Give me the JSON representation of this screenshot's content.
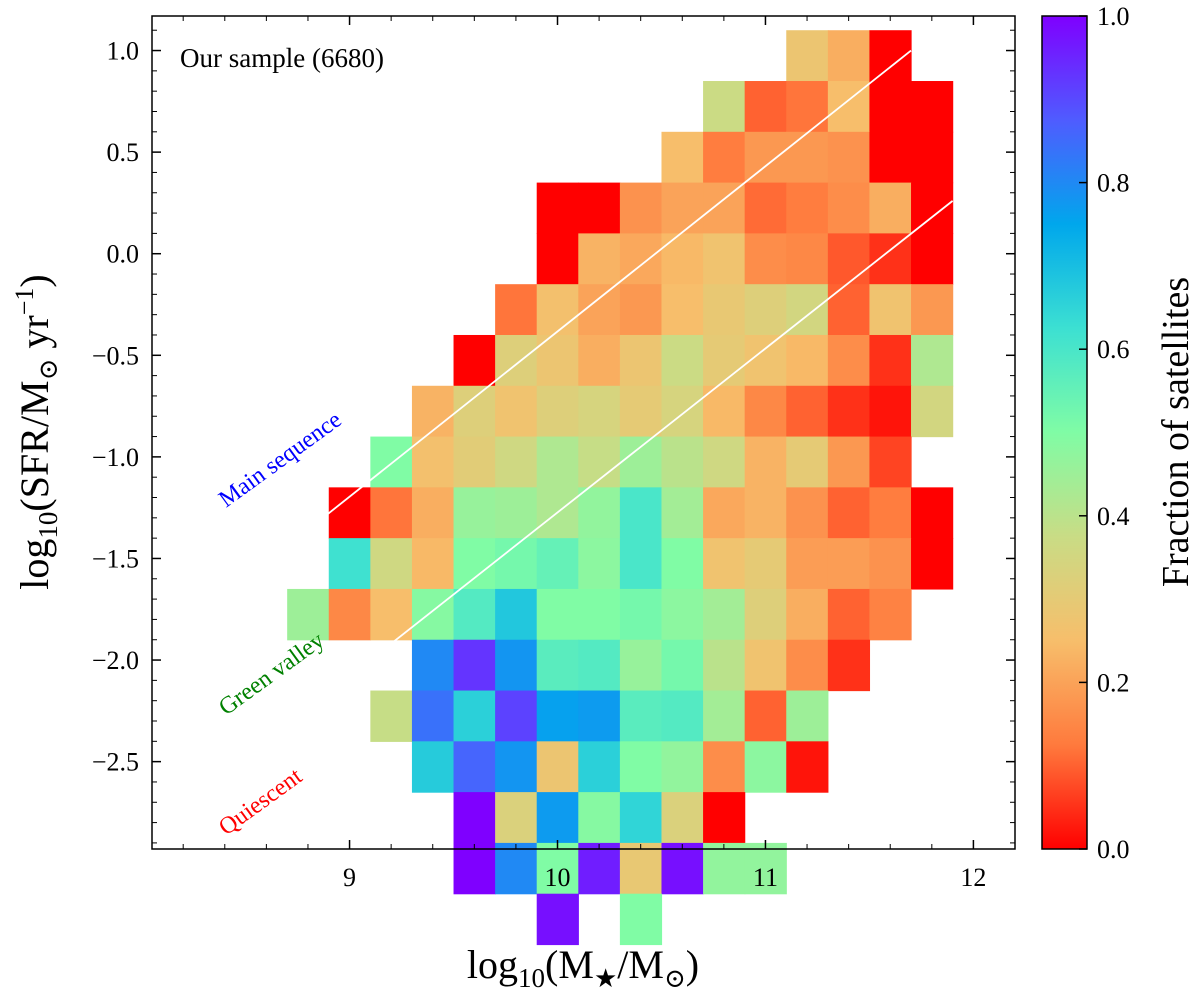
{
  "chart_data": {
    "type": "heatmap",
    "xlabel": "log10(M★/M⊙)",
    "ylabel": "log10(SFR/M⊙ yr−1)",
    "xlim": [
      8.05,
      12.2
    ],
    "ylim": [
      -2.93,
      1.17
    ],
    "x_ticks": [
      9,
      10,
      11,
      12
    ],
    "y_ticks": [
      1.0,
      0.5,
      0.0,
      -0.5,
      -1.0,
      -1.5,
      -2.0,
      -2.5
    ],
    "x_tick_labels": [
      "9",
      "10",
      "11",
      "12"
    ],
    "y_tick_labels": [
      "1.0",
      "0.5",
      "0.0",
      "−0.5",
      "−1.0",
      "−1.5",
      "−2.0",
      "−2.5"
    ],
    "bin_width_x": 0.2,
    "bin_width_y": 0.25,
    "x_bin_start": 8.7,
    "y_bin_top": 1.1,
    "colormap": "rainbow_r",
    "colorbar": {
      "label": "Fraction of satellites",
      "range": [
        0,
        1
      ],
      "ticks": [
        0.0,
        0.2,
        0.4,
        0.6,
        0.8,
        1.0
      ],
      "tick_labels": [
        "0.0",
        "0.2",
        "0.4",
        "0.6",
        "0.8",
        "1.0"
      ],
      "stops": [
        "#ff0000",
        "#ff7a3d",
        "#f7be6b",
        "#c9dc85",
        "#80fca5",
        "#3ce0d2",
        "#00a7ec",
        "#4f5cff",
        "#7f00ff"
      ]
    },
    "missing_value_note": "null = empty bin",
    "rows": [
      [
        null,
        null,
        null,
        null,
        null,
        null,
        null,
        null,
        null,
        null,
        null,
        null,
        0.28,
        0.22,
        0.0,
        null
      ],
      [
        null,
        null,
        null,
        null,
        null,
        null,
        null,
        null,
        null,
        null,
        0.37,
        0.1,
        0.12,
        0.25,
        0.0,
        0.0
      ],
      [
        null,
        null,
        null,
        null,
        null,
        null,
        null,
        null,
        null,
        0.25,
        0.13,
        0.18,
        0.18,
        0.17,
        0.0,
        0.0
      ],
      [
        null,
        null,
        null,
        null,
        null,
        null,
        0.0,
        0.0,
        0.17,
        0.2,
        0.2,
        0.11,
        0.13,
        0.16,
        0.22,
        0.0
      ],
      [
        null,
        null,
        null,
        null,
        null,
        null,
        0.0,
        0.23,
        0.21,
        0.24,
        0.27,
        0.16,
        0.15,
        0.09,
        0.05,
        0.0
      ],
      [
        null,
        null,
        null,
        null,
        null,
        0.12,
        0.26,
        0.2,
        0.18,
        0.25,
        0.29,
        0.32,
        0.35,
        0.1,
        0.27,
        0.18
      ],
      [
        null,
        null,
        null,
        null,
        0.0,
        0.32,
        0.28,
        0.22,
        0.28,
        0.37,
        0.3,
        0.27,
        0.24,
        0.16,
        0.05,
        0.42
      ],
      [
        null,
        null,
        null,
        0.23,
        0.32,
        0.27,
        0.32,
        0.34,
        0.3,
        0.34,
        0.24,
        0.15,
        0.1,
        0.05,
        0.02,
        0.35
      ],
      [
        null,
        null,
        0.5,
        0.26,
        0.31,
        0.36,
        0.42,
        0.38,
        0.45,
        0.4,
        0.36,
        0.23,
        0.3,
        0.18,
        0.07,
        null
      ],
      [
        null,
        0.0,
        0.12,
        0.22,
        0.46,
        0.45,
        0.42,
        0.47,
        0.6,
        0.44,
        0.21,
        0.23,
        0.17,
        0.1,
        0.13,
        0.0
      ],
      [
        null,
        0.62,
        0.36,
        0.24,
        0.5,
        0.52,
        0.55,
        0.48,
        0.6,
        0.5,
        0.27,
        0.3,
        0.19,
        0.19,
        0.17,
        0.0
      ],
      [
        0.45,
        0.15,
        0.25,
        0.49,
        0.58,
        0.68,
        0.5,
        0.5,
        0.52,
        0.48,
        0.44,
        0.32,
        0.22,
        0.1,
        0.14,
        null
      ],
      [
        null,
        null,
        null,
        0.8,
        0.93,
        0.78,
        0.57,
        0.58,
        0.46,
        0.52,
        0.4,
        0.27,
        0.16,
        0.05,
        null,
        null
      ],
      [
        null,
        null,
        0.38,
        0.84,
        0.66,
        0.91,
        0.76,
        0.77,
        0.57,
        0.58,
        0.44,
        0.1,
        0.45,
        null,
        null,
        null
      ],
      [
        null,
        null,
        null,
        0.67,
        0.86,
        0.78,
        0.28,
        0.66,
        0.5,
        0.47,
        0.16,
        0.48,
        0.02,
        null,
        null,
        null
      ],
      [
        null,
        null,
        null,
        null,
        1.0,
        0.33,
        0.77,
        0.49,
        0.65,
        0.33,
        0.0,
        null,
        null,
        null,
        null,
        null
      ],
      [
        null,
        null,
        null,
        null,
        1.0,
        0.8,
        0.5,
        0.96,
        0.29,
        0.98,
        0.47,
        0.47,
        null,
        null,
        null,
        null
      ],
      [
        null,
        null,
        null,
        null,
        null,
        null,
        0.98,
        null,
        0.5,
        null,
        null,
        null,
        null,
        null,
        null,
        null
      ]
    ],
    "lines": [
      {
        "x": [
          8.7,
          11.7
        ],
        "y": [
          -1.44,
          1.0
        ],
        "color": "#ffffff"
      },
      {
        "x": [
          9.1,
          11.9
        ],
        "y": [
          -2.0,
          0.26
        ],
        "color": "#ffffff"
      }
    ],
    "annotations": [
      {
        "text": "Our sample (6680)",
        "color": "#000000"
      },
      {
        "text": "Main sequence",
        "color": "#0000ff"
      },
      {
        "text": "Green valley",
        "color": "#008000"
      },
      {
        "text": "Quiescent",
        "color": "#ff0000"
      }
    ]
  }
}
